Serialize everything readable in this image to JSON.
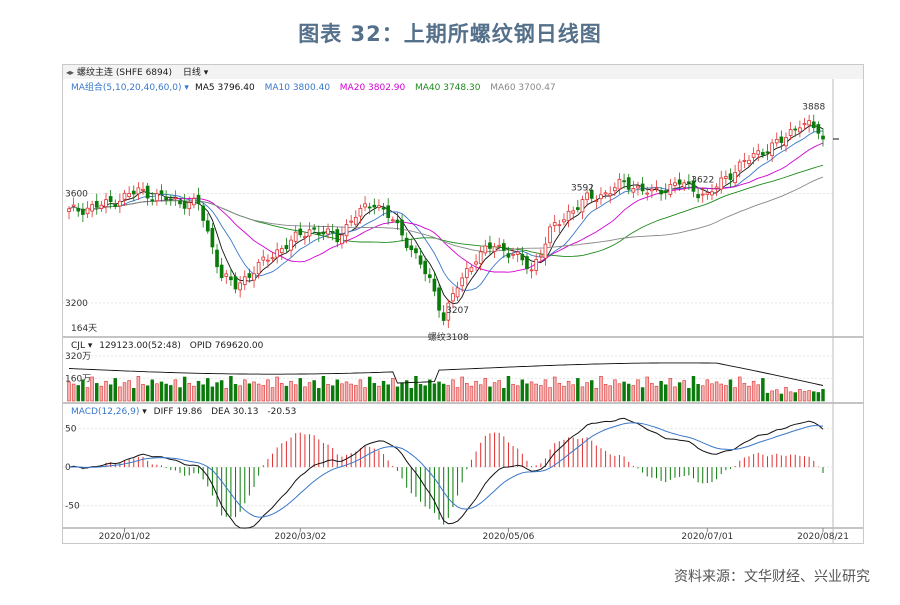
{
  "title": "图表 32：上期所螺纹钢日线图",
  "source": "资料来源：文华财经、兴业研究",
  "chart_header": {
    "instrument": "螺纹主连 (SHFE 6894)",
    "period": "日线"
  },
  "ma_legend": {
    "group": "MA组合(5,10,20,40,60,0)",
    "items": [
      {
        "label": "MA5 3796.40",
        "color": "#111111"
      },
      {
        "label": "MA10 3800.40",
        "color": "#3a78c9"
      },
      {
        "label": "MA20 3802.90",
        "color": "#d400d4"
      },
      {
        "label": "MA40 3748.30",
        "color": "#1e8a1e"
      },
      {
        "label": "MA60 3700.47",
        "color": "#888888"
      }
    ]
  },
  "days_label": "164天",
  "vol_legend": {
    "group": "CJL",
    "items": [
      "129123.00(52:48)",
      "OPID 769620.00"
    ]
  },
  "macd_legend": {
    "group": "MACD(12,26,9)",
    "items": [
      "DIFF 19.86",
      "DEA 30.13",
      "-20.53"
    ]
  },
  "colors": {
    "up": "#e03030",
    "down": "#0a7a0a",
    "title": "#54708a",
    "oi": "#111111"
  },
  "chart_data": {
    "type": "candlestick",
    "price_axis": {
      "ticks": [
        3200,
        3600
      ],
      "ylim": [
        3090,
        3960
      ]
    },
    "volume_axis": {
      "ticks": [
        "160万",
        "320万"
      ],
      "ylim_wan": [
        0,
        340
      ]
    },
    "macd_axis": {
      "ticks": [
        50,
        0,
        -50
      ],
      "ylim": [
        -75,
        65
      ]
    },
    "x_tick_labels": [
      "2020/01/02",
      "2020/03/02",
      "2020/05/06",
      "2020/07/01",
      "2020/08/21"
    ],
    "annotations": [
      {
        "label": "3622",
        "price": 3622,
        "anchor": "high"
      },
      {
        "label": "3207",
        "price": 3207,
        "anchor": "low"
      },
      {
        "label": "3592",
        "price": 3592,
        "anchor": "high"
      },
      {
        "label": "螺纹3108",
        "price": 3108,
        "anchor": "low"
      },
      {
        "label": "3888",
        "price": 3888,
        "anchor": "high"
      }
    ],
    "close_anchors": [
      [
        0,
        3535
      ],
      [
        8,
        3560
      ],
      [
        15,
        3610
      ],
      [
        22,
        3575
      ],
      [
        28,
        3560
      ],
      [
        33,
        3300
      ],
      [
        36,
        3260
      ],
      [
        40,
        3320
      ],
      [
        45,
        3390
      ],
      [
        52,
        3470
      ],
      [
        58,
        3440
      ],
      [
        62,
        3520
      ],
      [
        66,
        3570
      ],
      [
        70,
        3500
      ],
      [
        74,
        3400
      ],
      [
        78,
        3280
      ],
      [
        81,
        3150
      ],
      [
        84,
        3260
      ],
      [
        88,
        3370
      ],
      [
        92,
        3410
      ],
      [
        96,
        3380
      ],
      [
        100,
        3320
      ],
      [
        104,
        3460
      ],
      [
        108,
        3530
      ],
      [
        112,
        3580
      ],
      [
        116,
        3600
      ],
      [
        120,
        3640
      ],
      [
        126,
        3600
      ],
      [
        132,
        3640
      ],
      [
        138,
        3590
      ],
      [
        142,
        3660
      ],
      [
        148,
        3740
      ],
      [
        154,
        3790
      ],
      [
        158,
        3860
      ],
      [
        162,
        3830
      ],
      [
        163,
        3796
      ]
    ],
    "volume_pattern_wan": [
      135,
      120,
      110,
      150,
      95,
      170,
      125,
      105,
      140,
      115,
      160,
      100,
      130,
      145,
      90,
      175,
      118,
      108,
      150,
      122
    ]
  }
}
